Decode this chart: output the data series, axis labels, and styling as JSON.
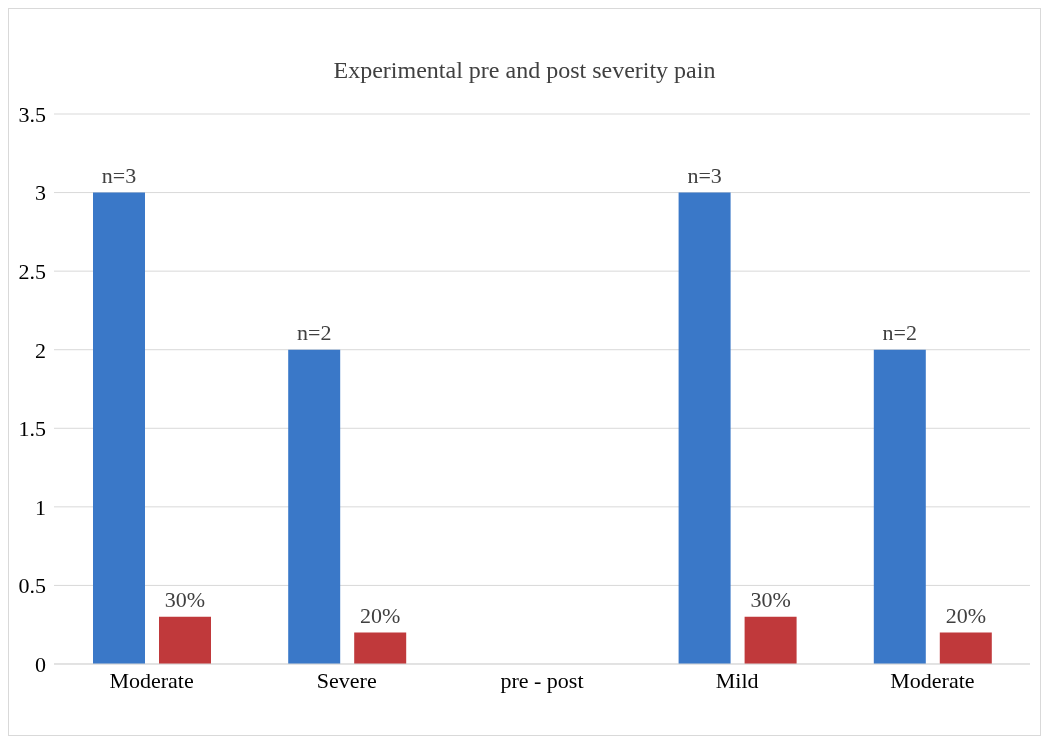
{
  "chart_data": {
    "type": "bar",
    "title": "Experimental pre and post severity pain",
    "categories": [
      "Moderate",
      "Severe",
      "pre -  post",
      "Mild",
      "Moderate"
    ],
    "series": [
      {
        "color": "#3a78c8",
        "values": [
          3,
          2,
          null,
          3,
          2
        ],
        "value_labels": [
          "n=3",
          "n=2",
          null,
          "n=3",
          "n=2"
        ]
      },
      {
        "color": "#c0393b",
        "values": [
          0.3,
          0.2,
          null,
          0.3,
          0.2
        ],
        "value_labels": [
          "30%",
          "20%",
          null,
          "30%",
          "20%"
        ]
      }
    ],
    "ylim": [
      0,
      3.5
    ],
    "yticks": [
      0,
      0.5,
      1,
      1.5,
      2,
      2.5,
      3,
      3.5
    ],
    "grid": "y",
    "legend": false
  }
}
